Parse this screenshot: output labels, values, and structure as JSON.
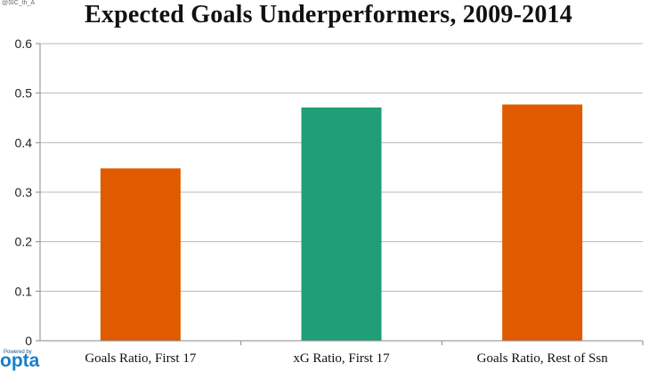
{
  "watermark": "@SIC_th_A",
  "powered": {
    "prefix": "Powered by",
    "brand": "opta"
  },
  "chart_data": {
    "type": "bar",
    "title": "Expected Goals Underperformers, 2009-2014",
    "categories": [
      "Goals Ratio, First 17",
      "xG Ratio, First 17",
      "Goals Ratio, Rest of Ssn"
    ],
    "values": [
      0.348,
      0.471,
      0.477
    ],
    "colors": [
      "#e05a00",
      "#1f9e78",
      "#e05a00"
    ],
    "ylim": [
      0,
      0.6
    ],
    "yticks": [
      "0",
      "0.1",
      "0.2",
      "0.3",
      "0.4",
      "0.5",
      "0.6"
    ],
    "grid": true,
    "xlabel": "",
    "ylabel": ""
  }
}
